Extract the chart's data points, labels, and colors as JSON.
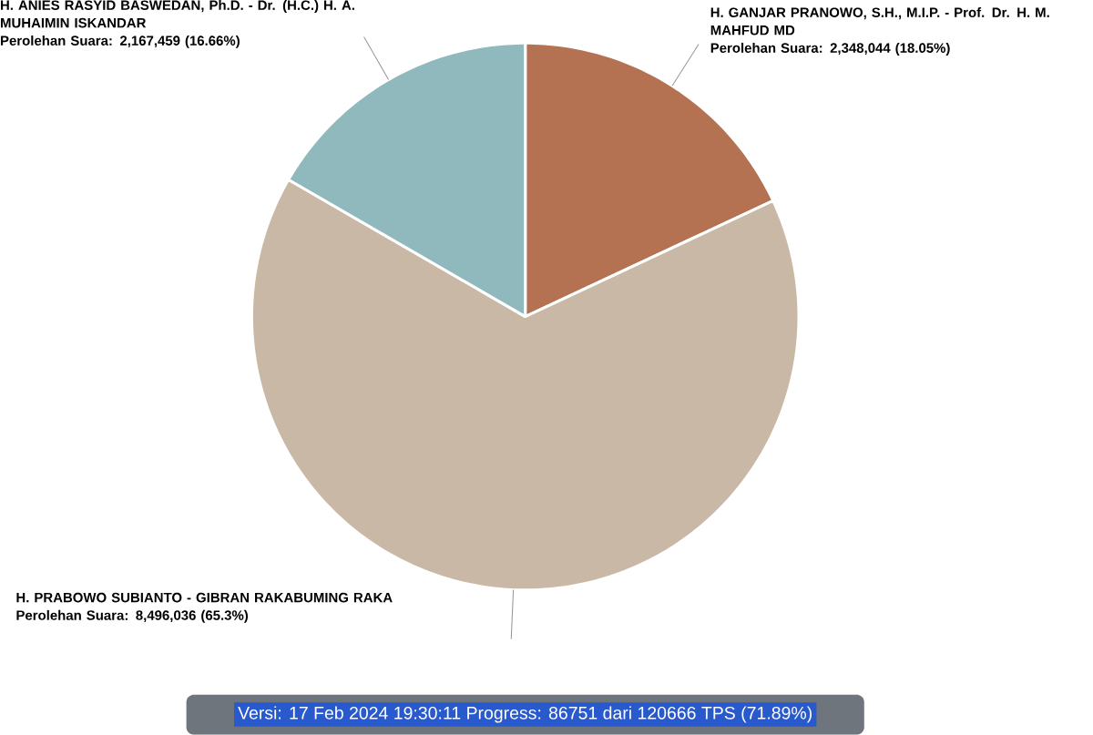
{
  "chart_data": {
    "type": "pie",
    "categories": [
      "H. GANJAR PRANOWO, S.H., M.I.P. - Prof. Dr. H. M. MAHFUD MD",
      "H. PRABOWO SUBIANTO - GIBRAN RAKABUMING RAKA",
      "H. ANIES RASYID BASWEDAN, Ph.D. - Dr. (H.C.) H. A. MUHAIMIN ISKANDAR"
    ],
    "values": [
      2348044,
      8496036,
      2167459
    ],
    "colors": [
      "#b47252",
      "#c9b8a5",
      "#8fb9bd"
    ],
    "value_labels": [
      "Perolehan Suara: 2,348,044 (18.05%)",
      "Perolehan Suara: 8,496,036 (65.3%)",
      "Perolehan Suara: 2,167,459 (16.66%)"
    ],
    "annotations": [
      "Versi: 17 Feb 2024 19:30:11 Progress: 86751 dari 120666 TPS (71.89%)"
    ]
  }
}
